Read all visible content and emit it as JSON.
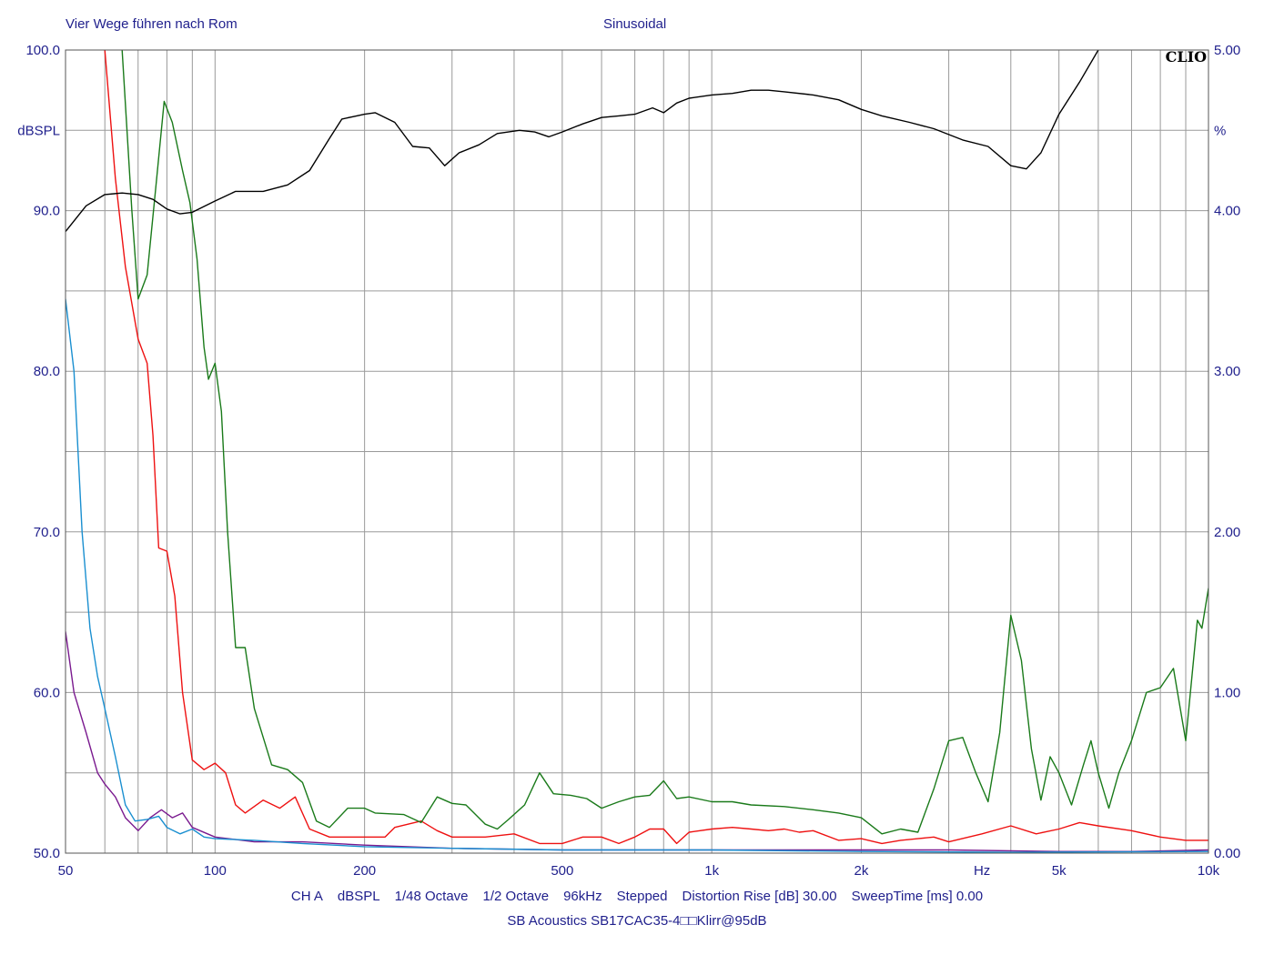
{
  "header": {
    "title_left": "Vier Wege führen nach Rom",
    "title_right": "Sinusoidal"
  },
  "logo": "CLIO",
  "footer": {
    "settings": [
      "CH A",
      "dBSPL",
      "1/48 Octave",
      "1/2 Octave",
      "96kHz",
      "Stepped",
      "Distortion Rise [dB] 30.00",
      "SweepTime [ms] 0.00"
    ],
    "device": "SB Acoustics SB17CAC35-4□□Klirr@95dB"
  },
  "colors": {
    "axis_text": "#1f1f8c",
    "grid": "#9a9a9a",
    "series_spl": "#000000",
    "series_green": "#1a7a1a",
    "series_red": "#ee1111",
    "series_blue": "#1a8fd0",
    "series_purple": "#7a1a8f"
  },
  "chart_data": {
    "type": "line",
    "x_scale": "log",
    "xlim": [
      50,
      10000
    ],
    "x_ticks": [
      {
        "value": 50,
        "label": "50"
      },
      {
        "value": 100,
        "label": "100"
      },
      {
        "value": 200,
        "label": "200"
      },
      {
        "value": 500,
        "label": "500"
      },
      {
        "value": 1000,
        "label": "1k"
      },
      {
        "value": 2000,
        "label": "2k"
      },
      {
        "value": 3500,
        "label": "Hz"
      },
      {
        "value": 5000,
        "label": "5k"
      },
      {
        "value": 10000,
        "label": "10k"
      }
    ],
    "y_left": {
      "label": "dBSPL",
      "ylim": [
        50,
        100
      ],
      "ticks": [
        {
          "value": 50,
          "label": "50.0"
        },
        {
          "value": 60,
          "label": "60.0"
        },
        {
          "value": 70,
          "label": "70.0"
        },
        {
          "value": 80,
          "label": "80.0"
        },
        {
          "value": 90,
          "label": "90.0"
        },
        {
          "value": 100,
          "label": "100.0"
        }
      ]
    },
    "y_right": {
      "label": "%",
      "ylim": [
        0,
        5
      ],
      "ticks": [
        {
          "value": 0,
          "label": "0.00"
        },
        {
          "value": 1,
          "label": "1.00"
        },
        {
          "value": 2,
          "label": "2.00"
        },
        {
          "value": 3,
          "label": "3.00"
        },
        {
          "value": 4,
          "label": "4.00"
        },
        {
          "value": 5,
          "label": "5.00"
        }
      ]
    },
    "grid": true,
    "series": [
      {
        "color_key": "series_spl",
        "axis": "left",
        "points": [
          [
            50,
            88.7
          ],
          [
            55,
            90.3
          ],
          [
            60,
            91.0
          ],
          [
            65,
            91.1
          ],
          [
            70,
            91.0
          ],
          [
            75,
            90.7
          ],
          [
            80,
            90.1
          ],
          [
            85,
            89.8
          ],
          [
            90,
            89.9
          ],
          [
            100,
            90.6
          ],
          [
            110,
            91.2
          ],
          [
            125,
            91.2
          ],
          [
            140,
            91.6
          ],
          [
            155,
            92.5
          ],
          [
            170,
            94.5
          ],
          [
            180,
            95.7
          ],
          [
            200,
            96.0
          ],
          [
            210,
            96.1
          ],
          [
            230,
            95.5
          ],
          [
            250,
            94.0
          ],
          [
            270,
            93.9
          ],
          [
            290,
            92.8
          ],
          [
            310,
            93.6
          ],
          [
            340,
            94.1
          ],
          [
            370,
            94.8
          ],
          [
            410,
            95.0
          ],
          [
            440,
            94.9
          ],
          [
            470,
            94.6
          ],
          [
            500,
            94.9
          ],
          [
            550,
            95.4
          ],
          [
            600,
            95.8
          ],
          [
            650,
            95.9
          ],
          [
            700,
            96.0
          ],
          [
            760,
            96.4
          ],
          [
            800,
            96.1
          ],
          [
            850,
            96.7
          ],
          [
            900,
            97.0
          ],
          [
            1000,
            97.2
          ],
          [
            1100,
            97.3
          ],
          [
            1200,
            97.5
          ],
          [
            1300,
            97.5
          ],
          [
            1400,
            97.4
          ],
          [
            1600,
            97.2
          ],
          [
            1800,
            96.9
          ],
          [
            2000,
            96.3
          ],
          [
            2200,
            95.9
          ],
          [
            2500,
            95.5
          ],
          [
            2800,
            95.1
          ],
          [
            3200,
            94.4
          ],
          [
            3600,
            94.0
          ],
          [
            4000,
            92.8
          ],
          [
            4300,
            92.6
          ],
          [
            4600,
            93.6
          ],
          [
            5000,
            96.0
          ],
          [
            5500,
            98.0
          ],
          [
            6000,
            100.0
          ]
        ]
      },
      {
        "color_key": "series_green",
        "axis": "left",
        "points": [
          [
            65,
            100.0
          ],
          [
            68,
            90.0
          ],
          [
            70,
            84.5
          ],
          [
            73,
            86.0
          ],
          [
            76,
            91.5
          ],
          [
            79,
            96.8
          ],
          [
            82,
            95.5
          ],
          [
            86,
            92.5
          ],
          [
            89,
            90.5
          ],
          [
            92,
            87.0
          ],
          [
            95,
            81.5
          ],
          [
            97,
            79.5
          ],
          [
            100,
            80.5
          ],
          [
            103,
            77.5
          ],
          [
            106,
            70.0
          ],
          [
            110,
            62.8
          ],
          [
            115,
            62.8
          ],
          [
            120,
            59.0
          ],
          [
            130,
            55.5
          ],
          [
            140,
            55.2
          ],
          [
            150,
            54.4
          ],
          [
            160,
            52.0
          ],
          [
            170,
            51.6
          ],
          [
            185,
            52.8
          ],
          [
            200,
            52.8
          ],
          [
            210,
            52.5
          ],
          [
            240,
            52.4
          ],
          [
            260,
            51.9
          ],
          [
            280,
            53.5
          ],
          [
            300,
            53.1
          ],
          [
            320,
            53.0
          ],
          [
            350,
            51.8
          ],
          [
            370,
            51.5
          ],
          [
            390,
            52.1
          ],
          [
            420,
            53.0
          ],
          [
            450,
            55.0
          ],
          [
            480,
            53.7
          ],
          [
            520,
            53.6
          ],
          [
            560,
            53.4
          ],
          [
            600,
            52.8
          ],
          [
            650,
            53.2
          ],
          [
            700,
            53.5
          ],
          [
            750,
            53.6
          ],
          [
            800,
            54.5
          ],
          [
            850,
            53.4
          ],
          [
            900,
            53.5
          ],
          [
            1000,
            53.2
          ],
          [
            1100,
            53.2
          ],
          [
            1200,
            53.0
          ],
          [
            1400,
            52.9
          ],
          [
            1600,
            52.7
          ],
          [
            1800,
            52.5
          ],
          [
            2000,
            52.2
          ],
          [
            2200,
            51.2
          ],
          [
            2400,
            51.5
          ],
          [
            2600,
            51.3
          ],
          [
            2800,
            54.0
          ],
          [
            3000,
            57.0
          ],
          [
            3200,
            57.2
          ],
          [
            3400,
            55.0
          ],
          [
            3600,
            53.2
          ],
          [
            3800,
            57.5
          ],
          [
            4000,
            64.8
          ],
          [
            4200,
            62.0
          ],
          [
            4400,
            56.5
          ],
          [
            4600,
            53.3
          ],
          [
            4800,
            56.0
          ],
          [
            5000,
            55.0
          ],
          [
            5300,
            53.0
          ],
          [
            5600,
            55.5
          ],
          [
            5800,
            57.0
          ],
          [
            6000,
            55.0
          ],
          [
            6300,
            52.8
          ],
          [
            6600,
            55.0
          ],
          [
            7000,
            57.0
          ],
          [
            7500,
            60.0
          ],
          [
            8000,
            60.3
          ],
          [
            8500,
            61.5
          ],
          [
            9000,
            57.0
          ],
          [
            9500,
            64.5
          ],
          [
            9700,
            64.0
          ],
          [
            10000,
            66.5
          ]
        ]
      },
      {
        "color_key": "series_red",
        "axis": "left",
        "points": [
          [
            60,
            100.0
          ],
          [
            63,
            92.0
          ],
          [
            66,
            86.5
          ],
          [
            70,
            82.0
          ],
          [
            73,
            80.5
          ],
          [
            75,
            76.0
          ],
          [
            77,
            69.0
          ],
          [
            80,
            68.8
          ],
          [
            83,
            66.0
          ],
          [
            86,
            60.0
          ],
          [
            90,
            55.8
          ],
          [
            95,
            55.2
          ],
          [
            100,
            55.6
          ],
          [
            105,
            55.0
          ],
          [
            110,
            53.0
          ],
          [
            115,
            52.5
          ],
          [
            125,
            53.3
          ],
          [
            135,
            52.8
          ],
          [
            145,
            53.5
          ],
          [
            155,
            51.5
          ],
          [
            170,
            51.0
          ],
          [
            200,
            51.0
          ],
          [
            220,
            51.0
          ],
          [
            230,
            51.6
          ],
          [
            260,
            52.0
          ],
          [
            280,
            51.4
          ],
          [
            300,
            51.0
          ],
          [
            350,
            51.0
          ],
          [
            400,
            51.2
          ],
          [
            450,
            50.6
          ],
          [
            500,
            50.6
          ],
          [
            550,
            51.0
          ],
          [
            600,
            51.0
          ],
          [
            650,
            50.6
          ],
          [
            700,
            51.0
          ],
          [
            750,
            51.5
          ],
          [
            800,
            51.5
          ],
          [
            850,
            50.6
          ],
          [
            900,
            51.3
          ],
          [
            1000,
            51.5
          ],
          [
            1100,
            51.6
          ],
          [
            1200,
            51.5
          ],
          [
            1300,
            51.4
          ],
          [
            1400,
            51.5
          ],
          [
            1500,
            51.3
          ],
          [
            1600,
            51.4
          ],
          [
            1800,
            50.8
          ],
          [
            2000,
            50.9
          ],
          [
            2200,
            50.6
          ],
          [
            2400,
            50.8
          ],
          [
            2600,
            50.9
          ],
          [
            2800,
            51.0
          ],
          [
            3000,
            50.7
          ],
          [
            3500,
            51.2
          ],
          [
            4000,
            51.7
          ],
          [
            4500,
            51.2
          ],
          [
            5000,
            51.5
          ],
          [
            5500,
            51.9
          ],
          [
            6000,
            51.7
          ],
          [
            7000,
            51.4
          ],
          [
            8000,
            51.0
          ],
          [
            9000,
            50.8
          ],
          [
            10000,
            50.8
          ]
        ]
      },
      {
        "color_key": "series_blue",
        "axis": "left",
        "points": [
          [
            50,
            84.5
          ],
          [
            52,
            80.0
          ],
          [
            54,
            70.0
          ],
          [
            56,
            64.0
          ],
          [
            58,
            61.0
          ],
          [
            60,
            59.0
          ],
          [
            63,
            56.0
          ],
          [
            66,
            53.0
          ],
          [
            69,
            52.0
          ],
          [
            73,
            52.1
          ],
          [
            77,
            52.3
          ],
          [
            80,
            51.6
          ],
          [
            85,
            51.2
          ],
          [
            90,
            51.5
          ],
          [
            95,
            51.0
          ],
          [
            100,
            50.9
          ],
          [
            120,
            50.8
          ],
          [
            150,
            50.6
          ],
          [
            200,
            50.4
          ],
          [
            300,
            50.3
          ],
          [
            500,
            50.2
          ],
          [
            1000,
            50.2
          ],
          [
            2000,
            50.1
          ],
          [
            4000,
            50.05
          ],
          [
            10000,
            50.1
          ]
        ]
      },
      {
        "color_key": "series_purple",
        "axis": "left",
        "points": [
          [
            50,
            63.8
          ],
          [
            52,
            60.0
          ],
          [
            55,
            57.5
          ],
          [
            58,
            55.0
          ],
          [
            60,
            54.3
          ],
          [
            63,
            53.5
          ],
          [
            66,
            52.2
          ],
          [
            70,
            51.4
          ],
          [
            74,
            52.2
          ],
          [
            78,
            52.7
          ],
          [
            82,
            52.2
          ],
          [
            86,
            52.5
          ],
          [
            90,
            51.6
          ],
          [
            100,
            51.0
          ],
          [
            120,
            50.7
          ],
          [
            150,
            50.7
          ],
          [
            200,
            50.5
          ],
          [
            300,
            50.3
          ],
          [
            500,
            50.2
          ],
          [
            1000,
            50.2
          ],
          [
            2000,
            50.2
          ],
          [
            3000,
            50.2
          ],
          [
            5000,
            50.1
          ],
          [
            7000,
            50.1
          ],
          [
            10000,
            50.2
          ]
        ]
      }
    ]
  }
}
